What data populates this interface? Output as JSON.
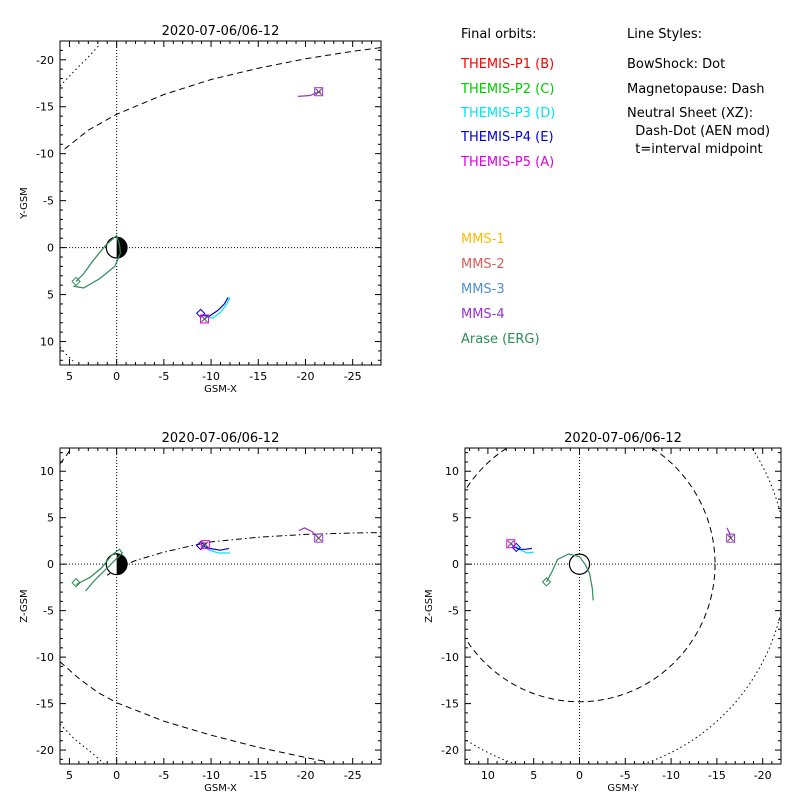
{
  "chart_data": [
    {
      "type": "scatter",
      "title": "2020-07-06/06-12",
      "xlabel": "GSM-X",
      "ylabel": "Y-GSM",
      "xlim": [
        6,
        -28
      ],
      "ylim": [
        12.5,
        -22
      ],
      "xticks": [
        5,
        0,
        -5,
        -10,
        -15,
        -20,
        -25
      ],
      "yticks": [
        10,
        5,
        0,
        -5,
        -10,
        -15,
        -20
      ],
      "earth": {
        "x": 0,
        "y": 0,
        "radius_re": 1.1
      },
      "boundary_lines": [
        {
          "name": "magnetopause",
          "style": "dash",
          "points": [
            [
              5.5,
              -10.5
            ],
            [
              3,
              -12.5
            ],
            [
              0,
              -14.2
            ],
            [
              -5,
              -16.3
            ],
            [
              -10,
              -17.9
            ],
            [
              -15,
              -19.1
            ],
            [
              -20,
              -20.1
            ],
            [
              -25,
              -20.9
            ],
            [
              -28,
              -21.3
            ]
          ]
        },
        {
          "name": "bowshock",
          "style": "dot",
          "points": [
            [
              6,
              -17.2
            ],
            [
              4.5,
              -18.8
            ],
            [
              3,
              -20.3
            ],
            [
              1.9,
              -21.5
            ]
          ]
        },
        {
          "name": "bowshock",
          "style": "dot",
          "points": [
            [
              6,
              10.6
            ],
            [
              5.3,
              11.4
            ],
            [
              4.6,
              12.1
            ]
          ]
        }
      ],
      "orbits": [
        {
          "series": "Arase (ERG)",
          "color": "#2e8b57",
          "points": [
            [
              4.3,
              3.6
            ],
            [
              3.5,
              2.8
            ],
            [
              2.5,
              1.4
            ],
            [
              1.2,
              -0.2
            ],
            [
              0,
              -1.3
            ],
            [
              -0.3,
              -0.3
            ],
            [
              -0.4,
              0.6
            ],
            [
              0.2,
              2
            ],
            [
              1.8,
              3.3
            ],
            [
              3.5,
              4.3
            ],
            [
              4.6,
              4.1
            ]
          ],
          "marker": "diamond",
          "marker_at": [
            4.3,
            3.6
          ]
        },
        {
          "series": "THEMIS-P3 (D)",
          "color": "#00e5ee",
          "points": [
            [
              -9.4,
              7.4
            ],
            [
              -10.2,
              7.5
            ],
            [
              -11,
              6.9
            ],
            [
              -11.6,
              6.1
            ],
            [
              -12,
              5.3
            ]
          ]
        },
        {
          "series": "THEMIS-P4 (E)",
          "color": "#0000cc",
          "points": [
            [
              -8.9,
              7.2
            ],
            [
              -9.8,
              7.3
            ],
            [
              -10.7,
              6.7
            ],
            [
              -11.4,
              6
            ],
            [
              -11.8,
              5.3
            ]
          ],
          "marker": "diamond",
          "marker_at": [
            -8.9,
            7.0
          ]
        },
        {
          "series": "THEMIS-P5 (A)",
          "color": "#e000e0",
          "points": [
            [
              -9.3,
              7.6
            ],
            [
              -9.5,
              7.5
            ]
          ],
          "marker": "square",
          "marker_at": [
            -9.3,
            7.6
          ]
        },
        {
          "series": "THEMIS-P1 (B)",
          "color": "#e00000",
          "points": [
            [
              -21.4,
              -16.5
            ],
            [
              -21.6,
              -16.6
            ]
          ]
        },
        {
          "series": "MMS-4",
          "color": "#9932cc",
          "points": [
            [
              -19.2,
              -16.1
            ],
            [
              -20.5,
              -16.2
            ],
            [
              -21.4,
              -16.6
            ]
          ],
          "marker": "square",
          "marker_at": [
            -21.4,
            -16.6
          ]
        }
      ]
    },
    {
      "type": "scatter",
      "title": "2020-07-06/06-12",
      "xlabel": "GSM-X",
      "ylabel": "Z-GSM",
      "xlim": [
        6,
        -28
      ],
      "ylim": [
        -21.5,
        12.5
      ],
      "xticks": [
        5,
        0,
        -5,
        -10,
        -15,
        -20,
        -25
      ],
      "yticks": [
        10,
        5,
        0,
        -5,
        -10,
        -15,
        -20
      ],
      "earth": {
        "x": 0,
        "y": 0,
        "radius_re": 1.1
      },
      "boundary_lines": [
        {
          "name": "magnetopause",
          "style": "dash",
          "points": [
            [
              6,
              -10.5
            ],
            [
              4,
              -12.3
            ],
            [
              2,
              -13.8
            ],
            [
              0,
              -14.9
            ],
            [
              -5,
              -16.9
            ],
            [
              -10,
              -18.4
            ],
            [
              -15,
              -19.7
            ],
            [
              -20,
              -20.8
            ],
            [
              -22,
              -21.2
            ]
          ]
        },
        {
          "name": "magnetopause",
          "style": "dash",
          "points": [
            [
              6,
              10.8
            ],
            [
              5.4,
              11.6
            ],
            [
              4.8,
              12.5
            ]
          ]
        },
        {
          "name": "bowshock",
          "style": "dot",
          "points": [
            [
              6,
              -17.2
            ],
            [
              4.5,
              -18.8
            ],
            [
              2.5,
              -20.4
            ],
            [
              1.3,
              -21.5
            ]
          ]
        },
        {
          "name": "neutral sheet",
          "style": "dashdot",
          "points": [
            [
              1,
              -1.2
            ],
            [
              0,
              -0.5
            ],
            [
              -2,
              0.4
            ],
            [
              -5,
              1.3
            ],
            [
              -8,
              2
            ],
            [
              -10,
              2.4
            ],
            [
              -15,
              2.9
            ],
            [
              -20,
              3.2
            ],
            [
              -25,
              3.35
            ],
            [
              -28,
              3.4
            ]
          ]
        }
      ],
      "orbits": [
        {
          "series": "Arase (ERG)",
          "color": "#2e8b57",
          "points": [
            [
              3.3,
              -2.9
            ],
            [
              2.3,
              -1.7
            ],
            [
              1,
              -0.4
            ],
            [
              0,
              0.6
            ],
            [
              -0.6,
              1.2
            ],
            [
              -0.3,
              1.6
            ],
            [
              0.5,
              1
            ],
            [
              1.6,
              -0.4
            ],
            [
              2.8,
              -1.4
            ],
            [
              4.3,
              -2.2
            ]
          ],
          "marker": "diamond",
          "marker_at": [
            4.3,
            -2.0
          ]
        },
        {
          "series": "THEMIS-P3 (D)",
          "color": "#00e5ee",
          "points": [
            [
              -9.2,
              2
            ],
            [
              -9.8,
              1.5
            ],
            [
              -10.8,
              1.2
            ],
            [
              -12,
              1.2
            ]
          ]
        },
        {
          "series": "THEMIS-P4 (E)",
          "color": "#0000cc",
          "points": [
            [
              -9,
              2
            ],
            [
              -9.8,
              1.7
            ],
            [
              -11,
              1.5
            ],
            [
              -11.9,
              1.7
            ]
          ],
          "marker": "diamond",
          "marker_at": [
            -8.9,
            2.0
          ]
        },
        {
          "series": "THEMIS-P5 (A)",
          "color": "#e000e0",
          "points": [
            [
              -9.2,
              2.2
            ],
            [
              -9.4,
              2.1
            ]
          ],
          "marker": "square",
          "marker_at": [
            -9.4,
            2.1
          ]
        },
        {
          "series": "MMS-4",
          "color": "#9932cc",
          "points": [
            [
              -19.3,
              3.6
            ],
            [
              -19.9,
              3.9
            ],
            [
              -20.7,
              3.5
            ],
            [
              -21.4,
              2.8
            ]
          ],
          "marker": "square",
          "marker_at": [
            -21.4,
            2.8
          ]
        }
      ]
    },
    {
      "type": "scatter",
      "title": "2020-07-06/06-12",
      "xlabel": "GSM-Y",
      "ylabel": "Z-GSM",
      "xlim": [
        12.5,
        -22
      ],
      "ylim": [
        -21.5,
        12.5
      ],
      "xticks": [
        10,
        5,
        0,
        -5,
        -10,
        -15,
        -20
      ],
      "yticks": [
        10,
        5,
        0,
        -5,
        -10,
        -15,
        -20
      ],
      "earth": {
        "x": 0,
        "y": 0,
        "radius_re": 1.1
      },
      "boundary_circles": [
        {
          "name": "magnetopause",
          "style": "dash",
          "cx": 0,
          "cy": 0,
          "r": 14.8
        },
        {
          "name": "bowshock",
          "style": "dot",
          "cx": 0,
          "cy": 0,
          "r": 22.6
        }
      ],
      "orbits": [
        {
          "series": "Arase (ERG)",
          "color": "#2e8b57",
          "points": [
            [
              3.6,
              -1.9
            ],
            [
              3,
              -0.8
            ],
            [
              2.4,
              0.5
            ],
            [
              1.2,
              1.1
            ],
            [
              0,
              0.8
            ],
            [
              -0.6,
              0
            ],
            [
              -1.1,
              -1
            ],
            [
              -1.4,
              -2.6
            ],
            [
              -1.5,
              -3.9
            ]
          ],
          "marker": "diamond",
          "marker_at": [
            3.6,
            -1.9
          ]
        },
        {
          "series": "THEMIS-P3 (D)",
          "color": "#00e5ee",
          "points": [
            [
              6.9,
              1.9
            ],
            [
              6.4,
              1.5
            ],
            [
              5.7,
              1.2
            ],
            [
              5,
              1.3
            ]
          ]
        },
        {
          "series": "THEMIS-P4 (E)",
          "color": "#0000cc",
          "points": [
            [
              7.2,
              1.9
            ],
            [
              6.6,
              1.6
            ],
            [
              5.9,
              1.6
            ],
            [
              5.2,
              1.7
            ]
          ],
          "marker": "diamond",
          "marker_at": [
            6.9,
            1.8
          ]
        },
        {
          "series": "THEMIS-P5 (A)",
          "color": "#e000e0",
          "points": [
            [
              7.5,
              2.2
            ],
            [
              7.3,
              2.1
            ]
          ],
          "marker": "square",
          "marker_at": [
            7.5,
            2.2
          ]
        },
        {
          "series": "MMS-4",
          "color": "#9932cc",
          "points": [
            [
              -16.1,
              3.9
            ],
            [
              -16.4,
              3.3
            ],
            [
              -16.5,
              2.8
            ]
          ],
          "marker": "square",
          "marker_at": [
            -16.5,
            2.8
          ]
        }
      ]
    }
  ],
  "legend": {
    "orbits_title": "Final orbits:",
    "styles_title": "Line Styles:",
    "orbit_entries": [
      {
        "label": "THEMIS-P1 (B)",
        "color": "#ff0000"
      },
      {
        "label": "THEMIS-P2 (C)",
        "color": "#00cc00"
      },
      {
        "label": "THEMIS-P3 (D)",
        "color": "#00e5ee"
      },
      {
        "label": "THEMIS-P4 (E)",
        "color": "#0000cc"
      },
      {
        "label": "THEMIS-P5 (A)",
        "color": "#e000e0"
      }
    ],
    "style_entries": [
      "BowShock: Dot",
      "Magnetopause: Dash",
      "Neutral Sheet (XZ):",
      "  Dash-Dot (AEN mod)",
      "  t=interval midpoint"
    ],
    "mission_entries": [
      {
        "label": "MMS-1",
        "color": "#ffbb00"
      },
      {
        "label": "MMS-2",
        "color": "#e05a5a"
      },
      {
        "label": "MMS-3",
        "color": "#4f8fd6"
      },
      {
        "label": "MMS-4",
        "color": "#9932cc"
      },
      {
        "label": "Arase (ERG)",
        "color": "#2e8b57"
      }
    ]
  }
}
